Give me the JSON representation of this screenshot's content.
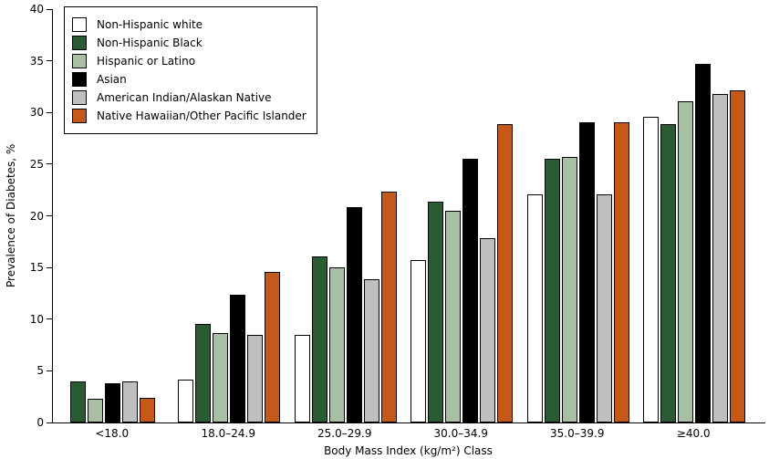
{
  "chart_data": {
    "type": "bar",
    "title": "",
    "xlabel": "Body Mass Index (kg/m²) Class",
    "ylabel": "Prevalence of Diabetes, %",
    "categories": [
      "<18.0",
      "18.0–24.9",
      "25.0–29.9",
      "30.0–34.9",
      "35.0–39.9",
      "≥40.0"
    ],
    "series": [
      {
        "name": "Non-Hispanic white",
        "color": "#ffffff",
        "values": [
          null,
          4.0,
          8.3,
          15.5,
          21.9,
          29.4
        ]
      },
      {
        "name": "Non-Hispanic Black",
        "color": "#2a5a31",
        "values": [
          3.8,
          9.4,
          15.9,
          21.2,
          25.3,
          28.7
        ]
      },
      {
        "name": "Hispanic or Latino",
        "color": "#a9bfa4",
        "values": [
          2.1,
          8.5,
          14.8,
          20.3,
          25.5,
          30.9
        ]
      },
      {
        "name": "Asian",
        "color": "#000000",
        "values": [
          3.6,
          12.2,
          20.7,
          25.3,
          28.9,
          34.5
        ]
      },
      {
        "name": "American Indian/Alaskan Native",
        "color": "#bfbfbf",
        "values": [
          3.8,
          8.3,
          13.7,
          17.7,
          21.9,
          31.6
        ]
      },
      {
        "name": "Native Hawaiian/Other Pacific Islander",
        "color": "#c4591a",
        "values": [
          2.2,
          14.4,
          22.2,
          28.7,
          28.9,
          32.0
        ]
      }
    ],
    "ylim": [
      0,
      40
    ],
    "ytick_step": 5,
    "grid": false,
    "legend_position": "upper-left",
    "bar_border_color": "#000000"
  }
}
